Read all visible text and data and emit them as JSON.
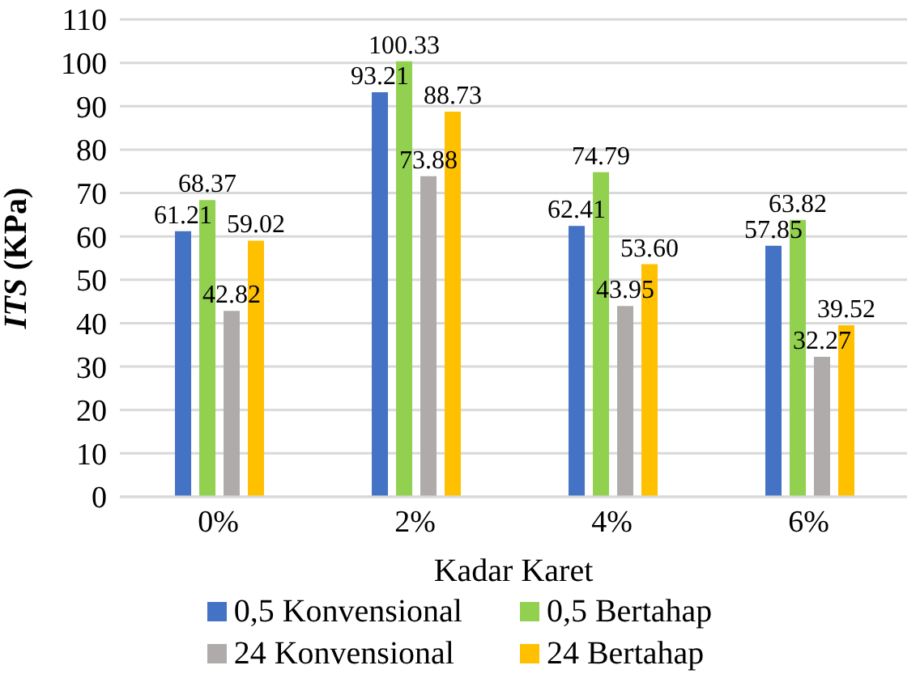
{
  "chart_data": {
    "type": "bar",
    "xlabel": "Kadar Karet",
    "ylabel": "ITS (KPa)",
    "categories": [
      "0%",
      "2%",
      "4%",
      "6%"
    ],
    "series": [
      {
        "name": "0,5 Konvensional",
        "color": "#4472c4",
        "values": [
          61.21,
          93.21,
          62.41,
          57.85
        ],
        "value_labels": [
          "61.21",
          "93.21",
          "62.41",
          "57.85"
        ]
      },
      {
        "name": "0,5 Bertahap",
        "color": "#92d050",
        "values": [
          68.37,
          100.33,
          74.79,
          63.82
        ],
        "value_labels": [
          "68.37",
          "100.33",
          "74.79",
          "63.82"
        ]
      },
      {
        "name": "24 Konvensional",
        "color": "#afabab",
        "values": [
          42.82,
          73.88,
          43.95,
          32.27
        ],
        "value_labels": [
          "42.82",
          "73.88",
          "43.95",
          "32.27"
        ]
      },
      {
        "name": "24 Bertahap",
        "color": "#ffc000",
        "values": [
          59.02,
          88.73,
          53.6,
          39.52
        ],
        "value_labels": [
          "59.02",
          "88.73",
          "53.60",
          "39.52"
        ]
      }
    ],
    "ylim": [
      0,
      110
    ],
    "yticks": [
      0,
      10,
      20,
      30,
      40,
      50,
      60,
      70,
      80,
      90,
      100,
      110
    ],
    "grid": "y",
    "legend": "bottom"
  }
}
